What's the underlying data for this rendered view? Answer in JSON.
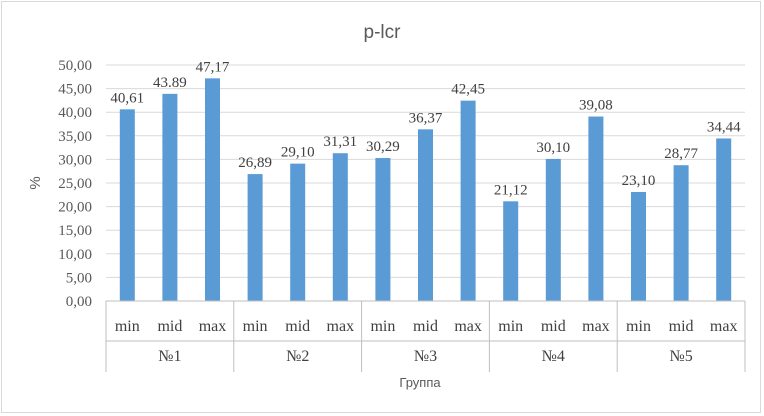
{
  "chart_data": {
    "type": "bar",
    "title": "p-lcr",
    "ylabel": "%",
    "xlabel": "Группа",
    "ylim": [
      0,
      50
    ],
    "y_ticks": [
      "0,00",
      "5,00",
      "10,00",
      "15,00",
      "20,00",
      "25,00",
      "30,00",
      "35,00",
      "40,00",
      "45,00",
      "50,00"
    ],
    "groups": [
      "№1",
      "№2",
      "№3",
      "№4",
      "№5"
    ],
    "subcategories": [
      "min",
      "mid",
      "max"
    ],
    "values": [
      [
        40.61,
        43.89,
        47.17
      ],
      [
        26.89,
        29.1,
        31.31
      ],
      [
        30.29,
        36.37,
        42.45
      ],
      [
        21.12,
        30.1,
        39.08
      ],
      [
        23.1,
        28.77,
        34.44
      ]
    ],
    "value_labels": [
      [
        "40,61",
        "43.89",
        "47,17"
      ],
      [
        "26,89",
        "29,10",
        "31,31"
      ],
      [
        "30,29",
        "36,37",
        "42,45"
      ],
      [
        "21,12",
        "30,10",
        "39,08"
      ],
      [
        "23,10",
        "28,77",
        "34,44"
      ]
    ],
    "grid": true,
    "legend": "none",
    "bar_color": "#5b9bd5"
  }
}
